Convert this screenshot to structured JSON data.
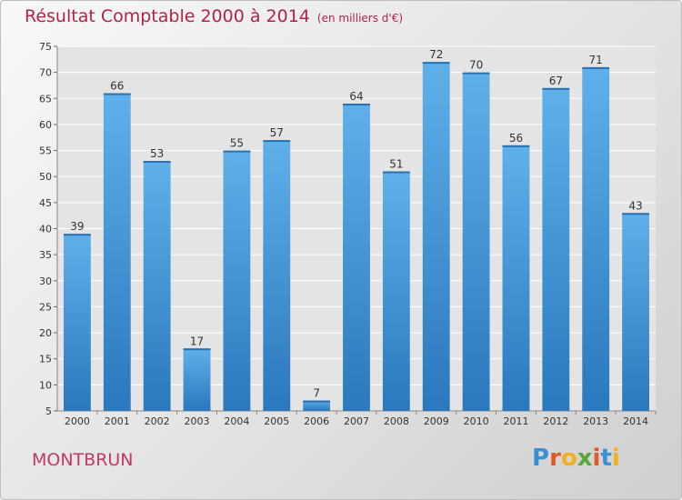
{
  "title": "Résultat Comptable 2000 à 2014",
  "subtitle": "(en milliers d'€)",
  "location": "MONTBRUN",
  "logo_text": "Proxiti",
  "colors": {
    "title": "#b2224a",
    "bar_top": "#5fb0ea",
    "bar_bottom": "#2a78bd"
  },
  "chart_data": {
    "type": "bar",
    "title": "Résultat Comptable 2000 à 2014",
    "subtitle": "(en milliers d'€)",
    "xlabel": "",
    "ylabel": "",
    "categories": [
      "2000",
      "2001",
      "2002",
      "2003",
      "2004",
      "2005",
      "2006",
      "2007",
      "2008",
      "2009",
      "2010",
      "2011",
      "2012",
      "2013",
      "2014"
    ],
    "values": [
      39,
      66,
      53,
      17,
      55,
      57,
      7,
      64,
      51,
      72,
      70,
      56,
      67,
      71,
      43
    ],
    "ylim": [
      5,
      75
    ],
    "yticks": [
      5,
      10,
      15,
      20,
      25,
      30,
      35,
      40,
      45,
      50,
      55,
      60,
      65,
      70,
      75
    ],
    "grid": true
  }
}
